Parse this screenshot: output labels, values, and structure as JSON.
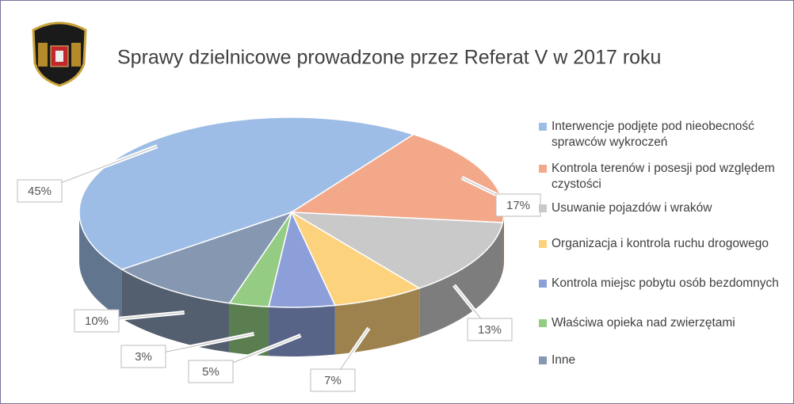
{
  "chart_data": {
    "type": "pie",
    "title": "Sprawy dzielnicowe prowadzone przez Referat V w 2017 roku",
    "categories": [
      "Interwencje podjęte pod nieobecność sprawców wykroczeń",
      "Kontrola terenów i posesji pod względem czystości",
      "Usuwanie pojazdów i wraków",
      "Organizacja i kontrola ruchu drogowego",
      "Kontrola miejsc pobytu osób bezdomnych",
      "Właściwa opieka nad zwierzętami",
      "Inne"
    ],
    "values": [
      45,
      17,
      13,
      7,
      5,
      3,
      10
    ],
    "value_labels": [
      "45%",
      "17%",
      "13%",
      "7%",
      "5%",
      "3%",
      "10%"
    ],
    "colors": [
      "#9dbde6",
      "#f3a88a",
      "#c9c9c9",
      "#fdd27c",
      "#8c9fd9",
      "#93cc82",
      "#8697b1"
    ]
  }
}
